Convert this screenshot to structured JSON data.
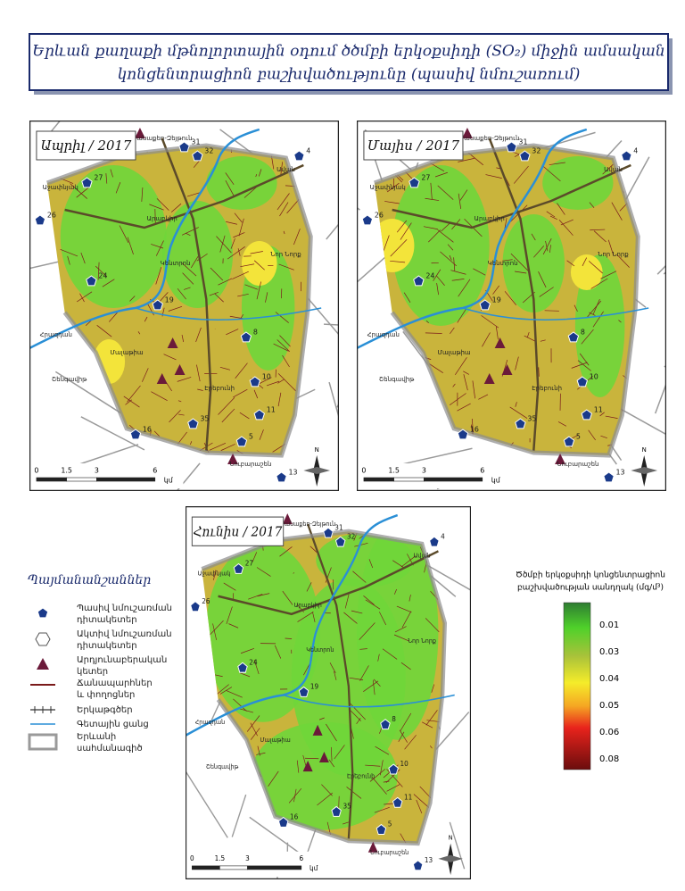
{
  "header": {
    "title_line1": "Երևան քաղաքի մթնոլորտային օդում ծծմբի երկօքսիդի (SO₂) միջին ամսական",
    "title_line2": "կոնցենտրացիոն բաշխվածությունը (պասիվ նմուշառում)"
  },
  "maps": [
    {
      "title": "Ապրիլ / 2017"
    },
    {
      "title": "Մայիս / 2017"
    },
    {
      "title": "Հունիս / 2017"
    }
  ],
  "scale": {
    "ticks": [
      "0",
      "1.5",
      "3",
      "6"
    ],
    "unit": "կմ"
  },
  "north": "N",
  "districts": [
    "Քանաքեռ-Զեյթուն",
    "Աջափնյակ",
    "Ավան",
    "Արաբկիր",
    "Նոր Նորք",
    "Կենտրոն",
    "Հրազդան",
    "Շենգավիթ",
    "Էրեբունի",
    "Նուբարաշեն",
    "Մալաթիա"
  ],
  "stations": [
    "31",
    "32",
    "4",
    "27",
    "26",
    "24",
    "19",
    "8",
    "10",
    "11",
    "13",
    "16",
    "35",
    "5"
  ],
  "legend": {
    "title": "Պայմանանշաններ",
    "items": [
      [
        "Պասիվ նմուշառման",
        "դիտակետեր"
      ],
      [
        "Ակտիվ նմուշառման",
        "դիտակետեր"
      ],
      [
        "Արդյունաբերական",
        "կետեր"
      ],
      [
        "Ճանապարհներ",
        "և փողոցներ"
      ],
      [
        "Երկաթգծեր"
      ],
      [
        "Գետային ցանց"
      ],
      [
        "Երևանի",
        "սահմանագիծ"
      ]
    ]
  },
  "colorbar": {
    "title_line1": "Ծծմբի երկօքսիդի կոնցենտրացիոն",
    "title_line2": "բաշխվածության սանդղակ (մգ/մ³)",
    "labels": [
      "0.01",
      "0.03",
      "0.04",
      "0.05",
      "0.06",
      "0.08"
    ]
  }
}
